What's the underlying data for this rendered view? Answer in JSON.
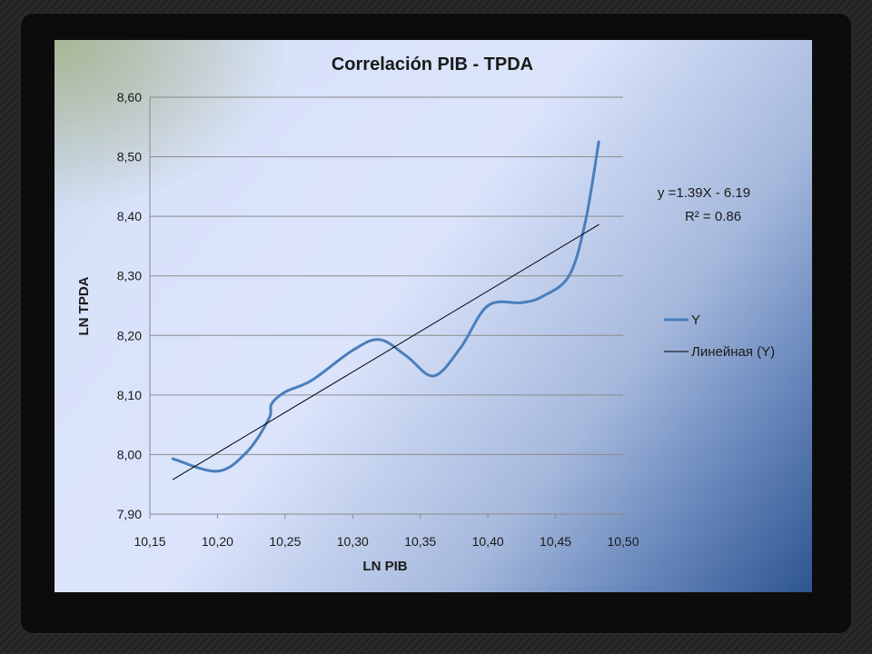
{
  "chart_data": {
    "type": "line",
    "title": "Correlación PIB - TPDA",
    "xlabel": "LN PIB",
    "ylabel": "LN  TPDA",
    "xlim": [
      10.15,
      10.5
    ],
    "ylim": [
      7.9,
      8.6
    ],
    "x_ticks": [
      "10,15",
      "10,20",
      "10,25",
      "10,30",
      "10,35",
      "10,40",
      "10,45",
      "10,50"
    ],
    "y_ticks": [
      "7,90",
      "8,00",
      "8,10",
      "8,20",
      "8,30",
      "8,40",
      "8,50",
      "8,60"
    ],
    "grid": "horizontal",
    "legend_position": "right",
    "series": [
      {
        "name": "Y",
        "color": "#4a7ebb",
        "style": "smooth",
        "x": [
          10.167,
          10.2,
          10.222,
          10.238,
          10.24,
          10.25,
          10.27,
          10.3,
          10.32,
          10.34,
          10.36,
          10.38,
          10.4,
          10.425,
          10.44,
          10.46,
          10.472,
          10.482
        ],
        "y": [
          7.993,
          7.972,
          8.005,
          8.06,
          8.085,
          8.105,
          8.125,
          8.175,
          8.193,
          8.165,
          8.132,
          8.18,
          8.25,
          8.255,
          8.265,
          8.3,
          8.39,
          8.525
        ]
      },
      {
        "name": "Линейная  (Y)",
        "color": "#000000",
        "style": "linear",
        "x": [
          10.167,
          10.482
        ],
        "y": [
          7.958,
          8.386
        ]
      }
    ],
    "annotations": [
      "y =1.39X - 6.19",
      "R² = 0.86"
    ]
  }
}
